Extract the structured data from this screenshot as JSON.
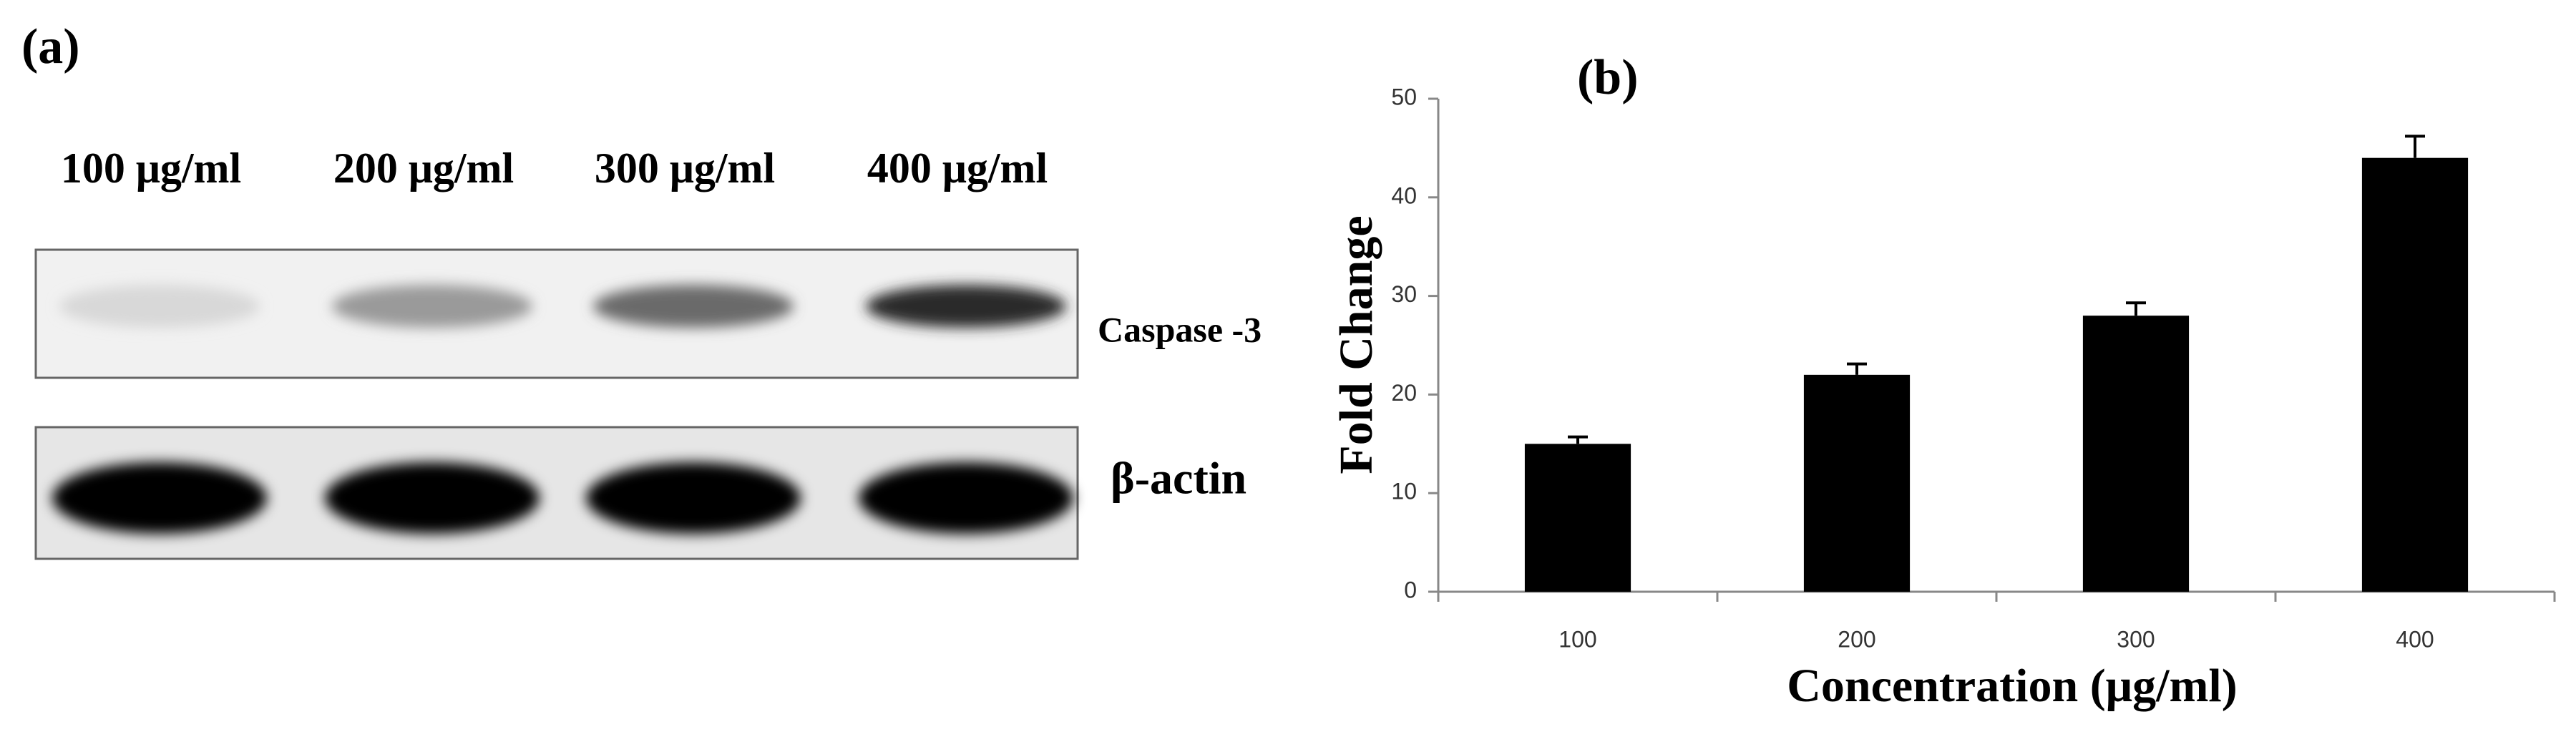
{
  "blot": {
    "panel_label": "(a)",
    "lanes": [
      "100 μg/ml",
      "200 μg/ml",
      "300 μg/ml",
      "400 μg/ml"
    ],
    "proteins": [
      "Caspase -3",
      "β-actin"
    ]
  },
  "chart_data": {
    "type": "bar",
    "panel_label": "(b)",
    "x_label": "Concentration (μg/ml)",
    "y_label": "Fold Change",
    "categories": [
      "100",
      "200",
      "300",
      "400"
    ],
    "values": [
      15,
      22,
      28,
      44
    ],
    "errors": [
      0.7,
      1.1,
      1.3,
      2.2
    ],
    "color": "#000000",
    "ylim": [
      0,
      50
    ],
    "yticks": [
      0,
      10,
      20,
      30,
      40,
      50
    ],
    "grid": false
  }
}
